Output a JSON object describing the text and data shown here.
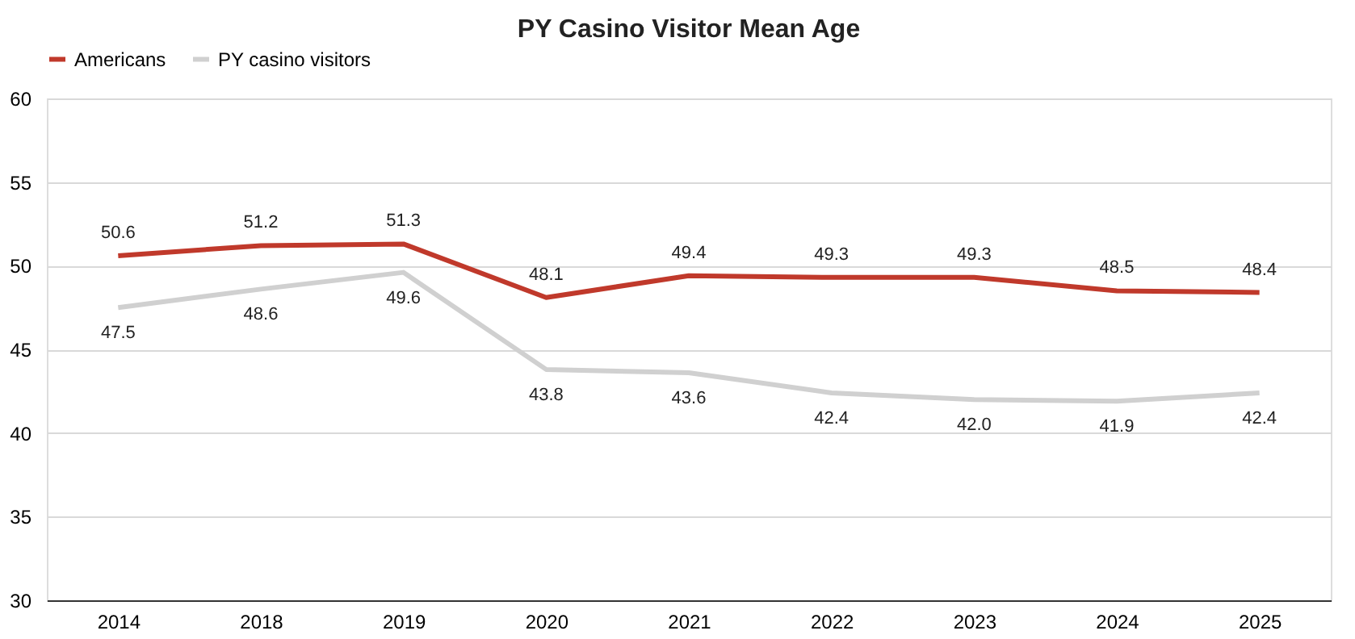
{
  "chart_data": {
    "type": "line",
    "title": "PY Casino Visitor Mean Age",
    "categories": [
      "2014",
      "2018",
      "2019",
      "2020",
      "2021",
      "2022",
      "2023",
      "2024",
      "2025"
    ],
    "series": [
      {
        "name": "Americans",
        "color": "#c0392b",
        "values": [
          50.6,
          51.2,
          51.3,
          48.1,
          49.4,
          49.3,
          49.3,
          48.5,
          48.4
        ],
        "value_labels": [
          "50.6",
          "51.2",
          "51.3",
          "48.1",
          "49.4",
          "49.3",
          "49.3",
          "48.5",
          "48.4"
        ]
      },
      {
        "name": "PY casino visitors",
        "color": "#d0d0d0",
        "values": [
          47.5,
          48.6,
          49.6,
          43.8,
          43.6,
          42.4,
          42.0,
          41.9,
          42.4
        ],
        "value_labels": [
          "47.5",
          "48.6",
          "49.6",
          "43.8",
          "43.6",
          "42.4",
          "42.0",
          "41.9",
          "42.4"
        ]
      }
    ],
    "ylim": [
      30,
      60
    ],
    "yticks": [
      30,
      35,
      40,
      45,
      50,
      55,
      60
    ],
    "grid": "y",
    "legend": "top",
    "marker": "none",
    "line_style": "solid"
  }
}
